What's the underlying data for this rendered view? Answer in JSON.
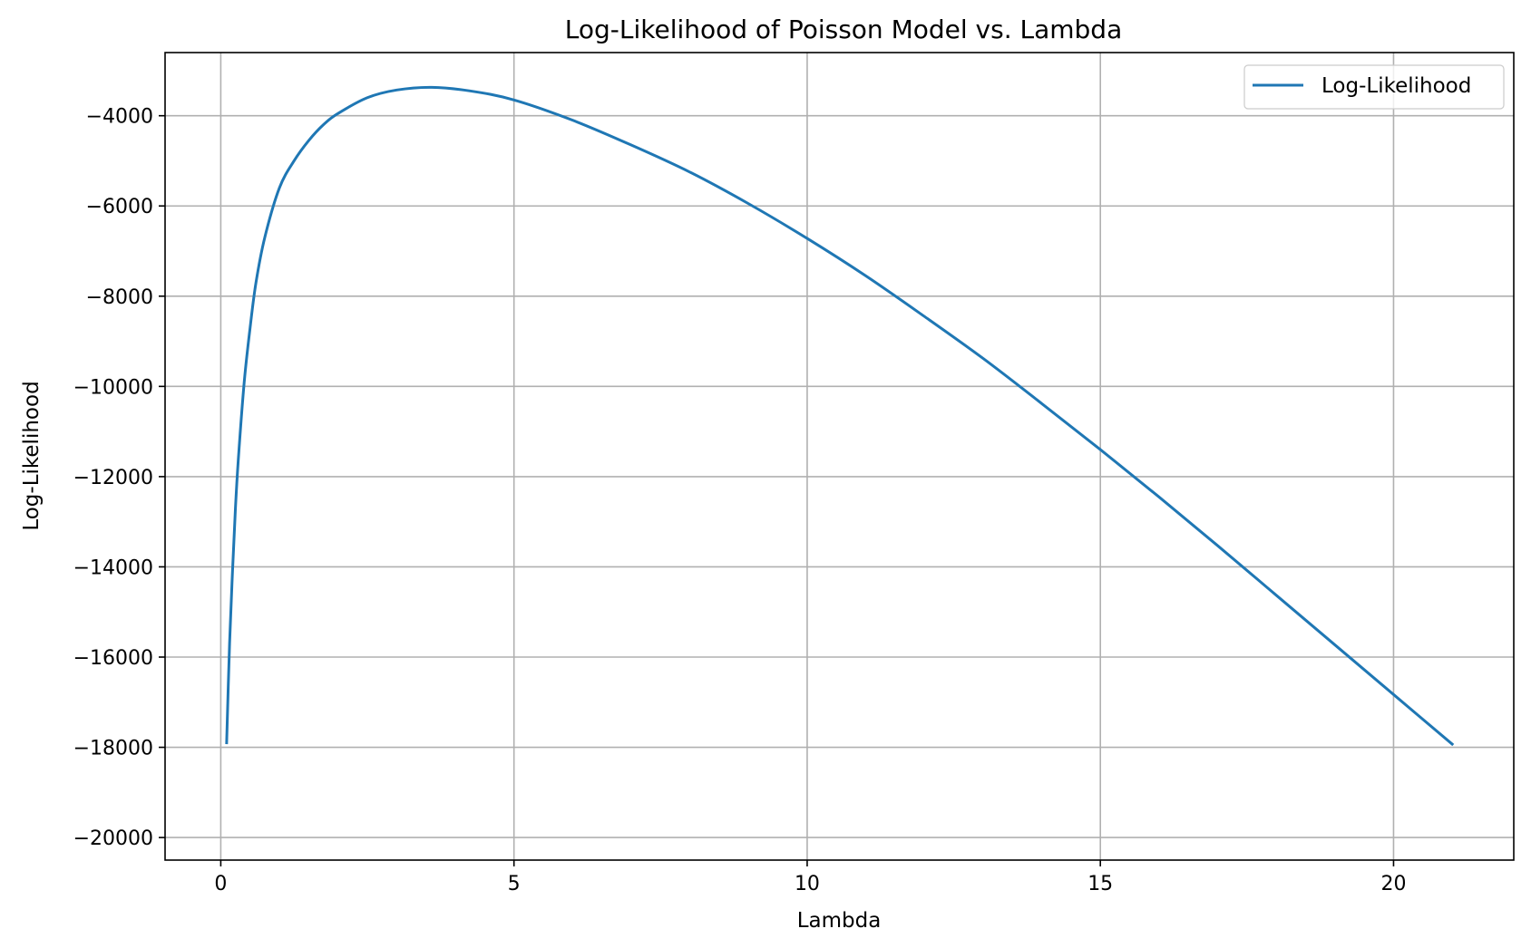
{
  "chart_data": {
    "type": "line",
    "title": "Log-Likelihood of Poisson Model vs. Lambda",
    "xlabel": "Lambda",
    "ylabel": "Log-Likelihood",
    "xlim": [
      -0.95,
      22.05
    ],
    "ylim": [
      -20500,
      -2600
    ],
    "xticks": [
      0,
      5,
      10,
      15,
      20
    ],
    "xtick_labels": [
      "0",
      "5",
      "10",
      "15",
      "20"
    ],
    "yticks": [
      -4000,
      -6000,
      -8000,
      -10000,
      -12000,
      -14000,
      -16000,
      -18000,
      -20000
    ],
    "ytick_labels": [
      "−4000",
      "−6000",
      "−8000",
      "−10000",
      "−12000",
      "−14000",
      "−16000",
      "−18000",
      "−20000"
    ],
    "grid": true,
    "legend_position": "top-right",
    "series": [
      {
        "name": "Log-Likelihood",
        "color": "#1f77b4",
        "x": [
          0.1,
          0.15,
          0.2,
          0.25,
          0.3,
          0.4,
          0.5,
          0.6,
          0.75,
          1.0,
          1.25,
          1.5,
          1.75,
          2.0,
          2.5,
          3.0,
          3.6,
          4.25,
          5.0,
          6.0,
          7.0,
          8.0,
          9.0,
          10.0,
          11.0,
          12.0,
          13.0,
          14.0,
          15.0,
          16.0,
          17.0,
          18.0,
          19.0,
          20.0,
          21.0
        ],
        "y": [
          -17900,
          -15700,
          -14100,
          -12700,
          -11600,
          -9900,
          -8700,
          -7700,
          -6700,
          -5600,
          -5000,
          -4550,
          -4200,
          -3950,
          -3600,
          -3430,
          -3370,
          -3450,
          -3650,
          -4100,
          -4650,
          -5250,
          -5950,
          -6720,
          -7550,
          -8450,
          -9380,
          -10380,
          -11400,
          -12450,
          -13530,
          -14630,
          -15730,
          -16830,
          -17930
        ]
      }
    ]
  }
}
